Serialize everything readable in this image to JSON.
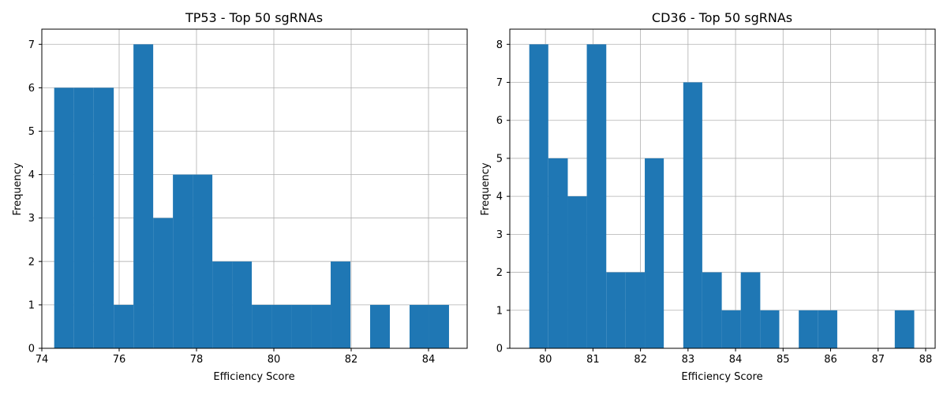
{
  "chart_data": [
    {
      "type": "bar",
      "title": "TP53 - Top 50 sgRNAs",
      "xlabel": "Efficiency Score",
      "ylabel": "Frequency",
      "xlim": [
        74.0,
        85.0
      ],
      "ylim": [
        0,
        7.35
      ],
      "grid": true,
      "color": "#1f77b4",
      "xticks": [
        74,
        76,
        78,
        80,
        82,
        84
      ],
      "yticks": [
        0,
        1,
        2,
        3,
        4,
        5,
        6,
        7
      ],
      "bins": [
        {
          "x0": 74.32,
          "x1": 74.83,
          "count": 6
        },
        {
          "x0": 74.83,
          "x1": 75.34,
          "count": 6
        },
        {
          "x0": 75.34,
          "x1": 75.86,
          "count": 6
        },
        {
          "x0": 75.86,
          "x1": 76.37,
          "count": 1
        },
        {
          "x0": 76.37,
          "x1": 76.88,
          "count": 7
        },
        {
          "x0": 76.88,
          "x1": 77.39,
          "count": 3
        },
        {
          "x0": 77.39,
          "x1": 77.9,
          "count": 4
        },
        {
          "x0": 77.9,
          "x1": 78.41,
          "count": 4
        },
        {
          "x0": 78.41,
          "x1": 78.92,
          "count": 2
        },
        {
          "x0": 78.92,
          "x1": 79.43,
          "count": 2
        },
        {
          "x0": 79.43,
          "x1": 79.94,
          "count": 1
        },
        {
          "x0": 79.94,
          "x1": 80.45,
          "count": 1
        },
        {
          "x0": 80.45,
          "x1": 80.96,
          "count": 1
        },
        {
          "x0": 80.96,
          "x1": 81.47,
          "count": 1
        },
        {
          "x0": 81.47,
          "x1": 81.98,
          "count": 2
        },
        {
          "x0": 81.98,
          "x1": 82.49,
          "count": 0
        },
        {
          "x0": 82.49,
          "x1": 83.0,
          "count": 1
        },
        {
          "x0": 83.0,
          "x1": 83.51,
          "count": 0
        },
        {
          "x0": 83.51,
          "x1": 84.02,
          "count": 1
        },
        {
          "x0": 84.02,
          "x1": 84.53,
          "count": 1
        }
      ]
    },
    {
      "type": "bar",
      "title": "CD36 - Top 50 sgRNAs",
      "xlabel": "Efficiency Score",
      "ylabel": "Frequency",
      "xlim": [
        79.25,
        88.2
      ],
      "ylim": [
        0,
        8.4
      ],
      "grid": true,
      "color": "#1f77b4",
      "xticks": [
        80,
        81,
        82,
        83,
        84,
        85,
        86,
        87,
        88
      ],
      "yticks": [
        0,
        1,
        2,
        3,
        4,
        5,
        6,
        7,
        8
      ],
      "bins": [
        {
          "x0": 79.66,
          "x1": 80.06,
          "count": 8
        },
        {
          "x0": 80.06,
          "x1": 80.47,
          "count": 5
        },
        {
          "x0": 80.47,
          "x1": 80.87,
          "count": 4
        },
        {
          "x0": 80.87,
          "x1": 81.28,
          "count": 8
        },
        {
          "x0": 81.28,
          "x1": 81.68,
          "count": 2
        },
        {
          "x0": 81.68,
          "x1": 82.09,
          "count": 2
        },
        {
          "x0": 82.09,
          "x1": 82.49,
          "count": 5
        },
        {
          "x0": 82.49,
          "x1": 82.9,
          "count": 0
        },
        {
          "x0": 82.9,
          "x1": 83.3,
          "count": 7
        },
        {
          "x0": 83.3,
          "x1": 83.71,
          "count": 2
        },
        {
          "x0": 83.71,
          "x1": 84.11,
          "count": 1
        },
        {
          "x0": 84.11,
          "x1": 84.52,
          "count": 2
        },
        {
          "x0": 84.52,
          "x1": 84.92,
          "count": 1
        },
        {
          "x0": 84.92,
          "x1": 85.33,
          "count": 0
        },
        {
          "x0": 85.33,
          "x1": 85.73,
          "count": 1
        },
        {
          "x0": 85.73,
          "x1": 86.14,
          "count": 1
        },
        {
          "x0": 86.14,
          "x1": 86.54,
          "count": 0
        },
        {
          "x0": 86.54,
          "x1": 86.95,
          "count": 0
        },
        {
          "x0": 86.95,
          "x1": 87.35,
          "count": 0
        },
        {
          "x0": 87.35,
          "x1": 87.76,
          "count": 1
        }
      ]
    }
  ]
}
